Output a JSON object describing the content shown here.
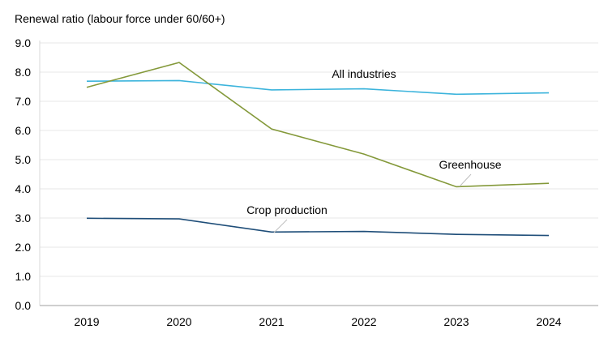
{
  "chart_data": {
    "type": "line",
    "title": "",
    "ylabel": "Renewal ratio (labour force under 60/60+)",
    "xlabel": "",
    "categories": [
      "2019",
      "2020",
      "2021",
      "2022",
      "2023",
      "2024"
    ],
    "ylim": [
      0,
      9
    ],
    "yticks": [
      "0.0",
      "1.0",
      "2.0",
      "3.0",
      "4.0",
      "5.0",
      "6.0",
      "7.0",
      "8.0",
      "9.0"
    ],
    "grid": true,
    "legend": "none (direct labels)",
    "series": [
      {
        "name": "All industries",
        "color": "#3cb4dc",
        "values": [
          7.69,
          7.71,
          7.39,
          7.43,
          7.24,
          7.29
        ]
      },
      {
        "name": "Greenhouse",
        "color": "#84993a",
        "values": [
          7.48,
          8.33,
          6.05,
          5.19,
          4.07,
          4.19
        ]
      },
      {
        "name": "Crop production",
        "color": "#1f4e79",
        "values": [
          2.99,
          2.97,
          2.52,
          2.54,
          2.44,
          2.4
        ]
      }
    ]
  }
}
